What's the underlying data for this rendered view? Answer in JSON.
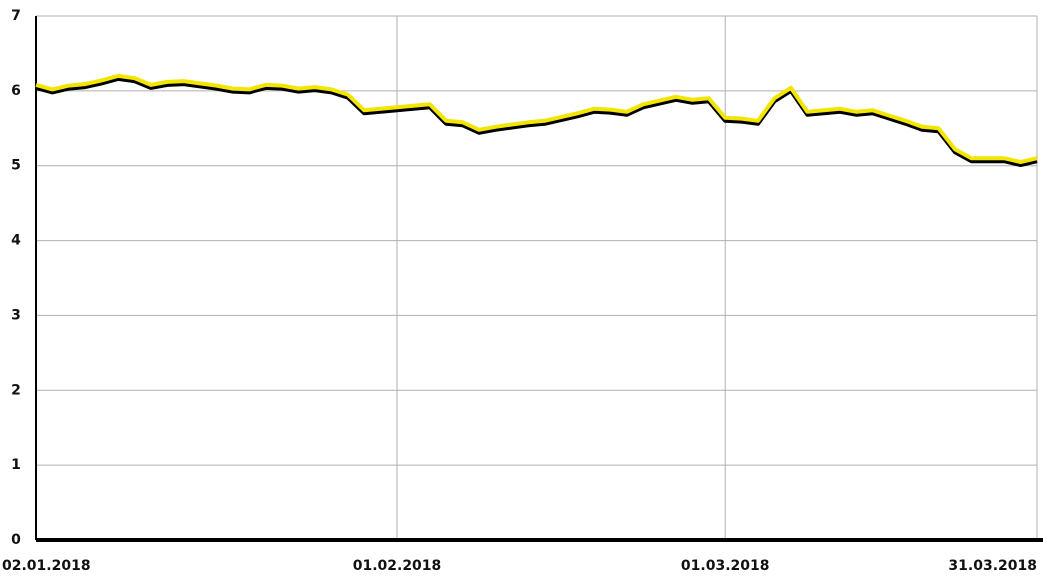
{
  "chart_data": {
    "type": "line",
    "categories": [
      "02.01.2018",
      null,
      null,
      null,
      null,
      null,
      null,
      null,
      null,
      null,
      null,
      null,
      null,
      null,
      null,
      null,
      null,
      null,
      null,
      null,
      null,
      null,
      "01.02.2018",
      null,
      null,
      null,
      null,
      null,
      null,
      null,
      null,
      null,
      null,
      null,
      null,
      null,
      null,
      null,
      null,
      null,
      null,
      null,
      "01.03.2018",
      null,
      null,
      null,
      null,
      null,
      null,
      null,
      null,
      null,
      null,
      null,
      null,
      null,
      null,
      null,
      null,
      null,
      null,
      "31.03.2018"
    ],
    "values": [
      6.08,
      6.02,
      6.07,
      6.09,
      6.14,
      6.2,
      6.17,
      6.08,
      6.12,
      6.13,
      6.1,
      6.07,
      6.03,
      6.02,
      6.08,
      6.07,
      6.03,
      6.05,
      6.02,
      5.95,
      5.74,
      5.76,
      5.78,
      5.8,
      5.82,
      5.6,
      5.58,
      5.48,
      5.52,
      5.55,
      5.58,
      5.6,
      5.65,
      5.7,
      5.76,
      5.75,
      5.72,
      5.82,
      5.87,
      5.92,
      5.88,
      5.9,
      5.64,
      5.63,
      5.6,
      5.9,
      6.04,
      5.72,
      5.74,
      5.76,
      5.72,
      5.74,
      5.67,
      5.6,
      5.52,
      5.5,
      5.22,
      5.1,
      5.1,
      5.1,
      5.05,
      5.1
    ],
    "color": "#f2e500",
    "ylim": [
      0,
      7
    ],
    "yticks": [
      0,
      1,
      2,
      3,
      4,
      5,
      6,
      7
    ],
    "grid": true
  }
}
